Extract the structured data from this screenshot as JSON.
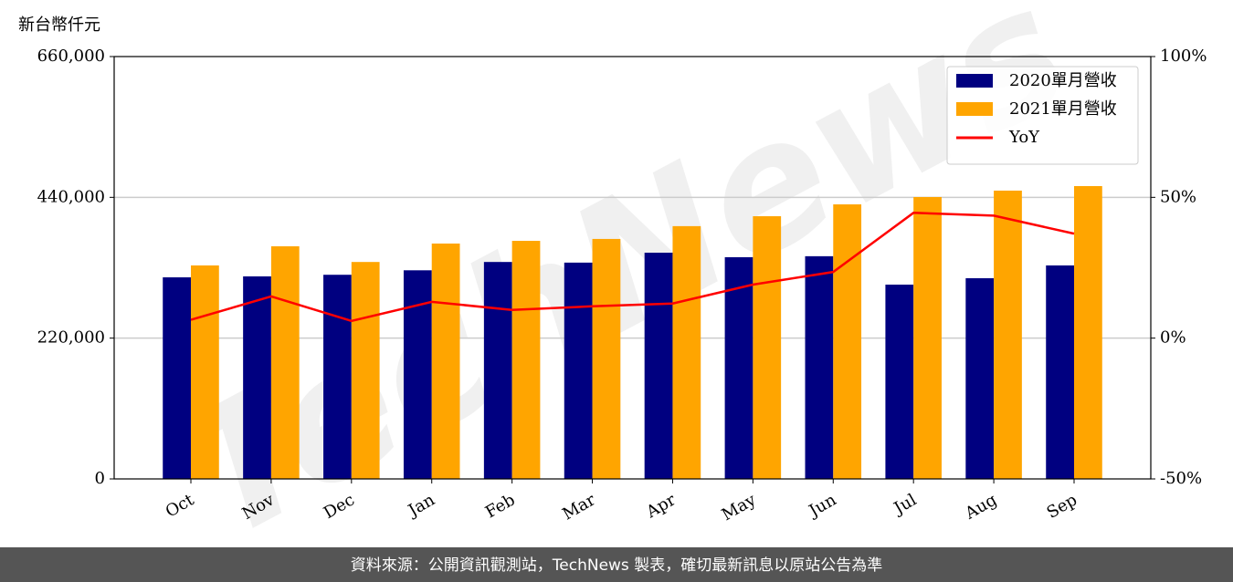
{
  "chart_data": {
    "type": "bar_line",
    "ylabel": "新台幣仟元",
    "watermark": "TechNews",
    "footer": "資料來源：公開資訊觀測站，TechNews 製表，確切最新訊息以原站公告為準",
    "categories": [
      "Oct",
      "Nov",
      "Dec",
      "Jan",
      "Feb",
      "Mar",
      "Apr",
      "May",
      "Jun",
      "Jul",
      "Aug",
      "Sep"
    ],
    "series": [
      {
        "name": "2020單月營收",
        "type": "bar",
        "color": "#000080",
        "values": [
          315000,
          316500,
          319000,
          326000,
          339000,
          338000,
          353500,
          346500,
          348000,
          303600,
          313600,
          333600
        ]
      },
      {
        "name": "2021單月營收",
        "type": "bar",
        "color": "#ffa500",
        "values": [
          333600,
          363500,
          339000,
          367800,
          372000,
          375000,
          395000,
          410500,
          429000,
          440500,
          450500,
          457600
        ]
      },
      {
        "name": "YoY",
        "type": "line",
        "axis": "y2",
        "color": "#ff0000",
        "values": [
          6.5,
          14.8,
          6.1,
          12.9,
          10.0,
          11.3,
          12.3,
          19.0,
          23.5,
          44.5,
          43.5,
          37.1
        ]
      }
    ],
    "ylim": [
      0,
      660000
    ],
    "yticks": [
      0,
      {
        "value": 220000,
        "label": "220,000"
      },
      {
        "value": 440000,
        "label": "440,000"
      },
      {
        "value": 660000,
        "label": "660,000"
      }
    ],
    "y2lim": [
      -50,
      100
    ],
    "y2ticks": [
      {
        "value": -50,
        "label": "-50%"
      },
      {
        "value": 0,
        "label": "0%"
      },
      {
        "value": 50,
        "label": "50%"
      },
      {
        "value": 100,
        "label": "100%"
      }
    ],
    "grid": true,
    "legend": "upper right"
  }
}
